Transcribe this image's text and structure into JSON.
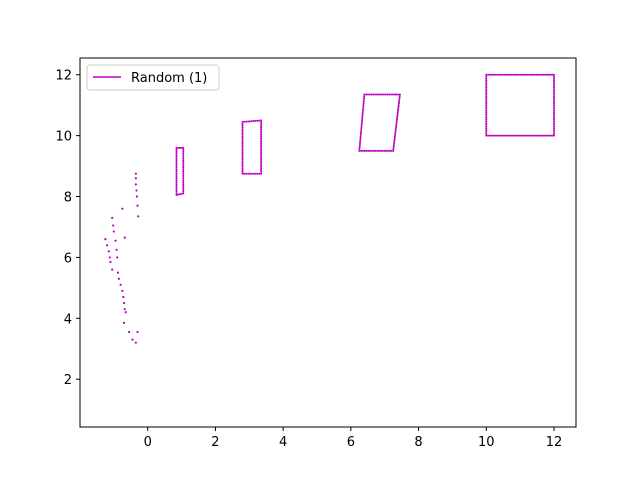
{
  "chart_data": {
    "type": "scatter",
    "title": "",
    "xlabel": "",
    "ylabel": "",
    "xlim": [
      -2.0,
      12.65
    ],
    "ylim": [
      0.43,
      12.55
    ],
    "x_ticks": [
      0,
      2,
      4,
      6,
      8,
      10,
      12
    ],
    "y_ticks": [
      2,
      4,
      6,
      8,
      10,
      12
    ],
    "x_tick_labels": [
      "0",
      "2",
      "4",
      "6",
      "8",
      "10",
      "12"
    ],
    "y_tick_labels": [
      "2",
      "4",
      "6",
      "8",
      "10",
      "12"
    ],
    "grid": false,
    "legend": {
      "position": "top-left",
      "entries": [
        "Random (1)"
      ]
    },
    "series": [
      {
        "name": "Random (1)",
        "color": "#bf00bf",
        "marker": "dot",
        "points": [
          [
            -0.35,
            8.75
          ],
          [
            -0.35,
            8.6
          ],
          [
            -0.35,
            8.4
          ],
          [
            -0.33,
            8.2
          ],
          [
            -0.32,
            8.0
          ],
          [
            -0.3,
            7.7
          ],
          [
            -0.28,
            7.35
          ],
          [
            -0.75,
            7.6
          ],
          [
            -0.68,
            6.65
          ],
          [
            -1.05,
            7.3
          ],
          [
            -1.02,
            7.05
          ],
          [
            -1.0,
            6.85
          ],
          [
            -0.95,
            6.55
          ],
          [
            -0.92,
            6.25
          ],
          [
            -0.9,
            6.0
          ],
          [
            -1.25,
            6.6
          ],
          [
            -1.2,
            6.4
          ],
          [
            -1.15,
            6.2
          ],
          [
            -1.12,
            6.0
          ],
          [
            -1.1,
            5.85
          ],
          [
            -1.05,
            5.6
          ],
          [
            -0.88,
            5.5
          ],
          [
            -0.85,
            5.3
          ],
          [
            -0.8,
            5.1
          ],
          [
            -0.75,
            4.9
          ],
          [
            -0.72,
            4.7
          ],
          [
            -0.7,
            4.5
          ],
          [
            -0.68,
            4.3
          ],
          [
            -0.65,
            4.2
          ],
          [
            -0.7,
            3.85
          ],
          [
            -0.55,
            3.55
          ],
          [
            -0.45,
            3.3
          ],
          [
            -0.35,
            3.2
          ],
          [
            -0.3,
            3.55
          ]
        ],
        "rectangles": [
          [
            [
              0.85,
              9.6
            ],
            [
              1.05,
              9.6
            ],
            [
              1.05,
              8.1
            ],
            [
              0.85,
              8.05
            ]
          ],
          [
            [
              2.8,
              10.45
            ],
            [
              3.35,
              10.5
            ],
            [
              3.35,
              8.75
            ],
            [
              2.8,
              8.75
            ]
          ],
          [
            [
              6.4,
              11.35
            ],
            [
              7.45,
              11.35
            ],
            [
              7.25,
              9.5
            ],
            [
              6.25,
              9.5
            ]
          ],
          [
            [
              10.0,
              12.0
            ],
            [
              12.0,
              12.0
            ],
            [
              12.0,
              10.0
            ],
            [
              10.0,
              10.0
            ]
          ]
        ]
      }
    ]
  }
}
